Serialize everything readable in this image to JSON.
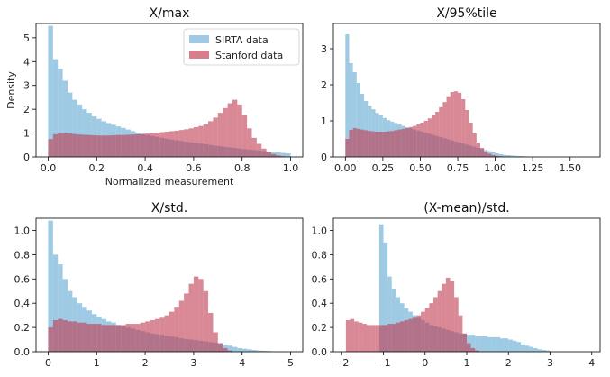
{
  "figure": {
    "legend": {
      "entries": [
        "SIRTA data",
        "Stanford data"
      ],
      "placement": "top-right of first panel"
    }
  },
  "colors": {
    "sirta": "#6BAED6",
    "stanford": "#C0394F"
  },
  "chart_data": [
    {
      "type": "histogram",
      "title": "X/max",
      "xlabel": "Normalized measurement",
      "ylabel": "Density",
      "xlim": [
        -0.05,
        1.05
      ],
      "ylim": [
        0,
        5.6
      ],
      "xticks": [
        0.0,
        0.2,
        0.4,
        0.6,
        0.8,
        1.0
      ],
      "xtick_labels": [
        "0.0",
        "0.2",
        "0.4",
        "0.6",
        "0.8",
        "1.0"
      ],
      "yticks": [
        0,
        1,
        2,
        3,
        4,
        5
      ],
      "ytick_labels": [
        "0",
        "1",
        "2",
        "3",
        "4",
        "5"
      ],
      "bin_start": 0.0,
      "bin_width": 0.02,
      "series": [
        {
          "name": "SIRTA data",
          "color": "#6BAED6",
          "values": [
            5.5,
            4.1,
            3.7,
            3.2,
            2.7,
            2.4,
            2.2,
            2.0,
            1.85,
            1.7,
            1.6,
            1.5,
            1.42,
            1.35,
            1.28,
            1.22,
            1.15,
            1.08,
            1.02,
            0.97,
            0.92,
            0.88,
            0.84,
            0.8,
            0.76,
            0.73,
            0.7,
            0.67,
            0.64,
            0.61,
            0.58,
            0.56,
            0.53,
            0.5,
            0.47,
            0.45,
            0.42,
            0.4,
            0.38,
            0.35,
            0.33,
            0.31,
            0.29,
            0.27,
            0.25,
            0.23,
            0.21,
            0.19,
            0.17,
            0.15
          ]
        },
        {
          "name": "Stanford data",
          "color": "#C0394F",
          "values": [
            0.75,
            0.95,
            1.0,
            1.0,
            0.98,
            0.96,
            0.94,
            0.93,
            0.92,
            0.91,
            0.9,
            0.9,
            0.9,
            0.91,
            0.92,
            0.92,
            0.93,
            0.94,
            0.95,
            0.96,
            0.98,
            1.0,
            1.02,
            1.04,
            1.06,
            1.08,
            1.1,
            1.13,
            1.16,
            1.2,
            1.25,
            1.3,
            1.38,
            1.5,
            1.65,
            1.85,
            2.05,
            2.25,
            2.4,
            2.2,
            1.75,
            1.2,
            0.8,
            0.55,
            0.35,
            0.22,
            0.12,
            0.06,
            0.03,
            0.01
          ]
        }
      ]
    },
    {
      "type": "histogram",
      "title": "X/95%tile",
      "xlim": [
        -0.08,
        1.7
      ],
      "ylim": [
        0,
        3.7
      ],
      "xticks": [
        0.0,
        0.25,
        0.5,
        0.75,
        1.0,
        1.25,
        1.5
      ],
      "xtick_labels": [
        "0.00",
        "0.25",
        "0.50",
        "0.75",
        "1.00",
        "1.25",
        "1.50"
      ],
      "yticks": [
        0,
        1,
        2,
        3
      ],
      "ytick_labels": [
        "0",
        "1",
        "2",
        "3"
      ],
      "bin_start": 0.0,
      "bin_width": 0.025,
      "series": [
        {
          "name": "SIRTA data",
          "color": "#6BAED6",
          "values": [
            3.4,
            2.6,
            2.35,
            2.05,
            1.75,
            1.55,
            1.42,
            1.32,
            1.22,
            1.15,
            1.08,
            1.02,
            0.98,
            0.94,
            0.9,
            0.86,
            0.82,
            0.79,
            0.76,
            0.73,
            0.7,
            0.67,
            0.64,
            0.61,
            0.58,
            0.55,
            0.52,
            0.49,
            0.46,
            0.43,
            0.4,
            0.37,
            0.34,
            0.31,
            0.28,
            0.25,
            0.22,
            0.19,
            0.16,
            0.13,
            0.1,
            0.08,
            0.06,
            0.05,
            0.04,
            0.03,
            0.025,
            0.02,
            0.015,
            0.012,
            0.01,
            0.008
          ]
        },
        {
          "name": "Stanford data",
          "color": "#C0394F",
          "values": [
            0.5,
            0.75,
            0.8,
            0.78,
            0.76,
            0.74,
            0.72,
            0.71,
            0.7,
            0.7,
            0.7,
            0.71,
            0.72,
            0.74,
            0.76,
            0.78,
            0.8,
            0.83,
            0.86,
            0.9,
            0.95,
            1.0,
            1.07,
            1.15,
            1.25,
            1.38,
            1.52,
            1.68,
            1.8,
            1.82,
            1.78,
            1.6,
            1.3,
            0.95,
            0.65,
            0.4,
            0.25,
            0.15,
            0.09,
            0.05,
            0.03,
            0.02,
            0.01
          ]
        }
      ]
    },
    {
      "type": "histogram",
      "title": "X/std.",
      "xlim": [
        -0.25,
        5.25
      ],
      "ylim": [
        0,
        1.1
      ],
      "xticks": [
        0,
        1,
        2,
        3,
        4,
        5
      ],
      "xtick_labels": [
        "0",
        "1",
        "2",
        "3",
        "4",
        "5"
      ],
      "yticks": [
        0.0,
        0.2,
        0.4,
        0.6,
        0.8,
        1.0
      ],
      "ytick_labels": [
        "0.0",
        "0.2",
        "0.4",
        "0.6",
        "0.8",
        "1.0"
      ],
      "bin_start": 0.0,
      "bin_width": 0.1,
      "series": [
        {
          "name": "SIRTA data",
          "color": "#6BAED6",
          "values": [
            1.08,
            0.8,
            0.72,
            0.6,
            0.5,
            0.45,
            0.4,
            0.37,
            0.34,
            0.31,
            0.29,
            0.27,
            0.25,
            0.24,
            0.22,
            0.21,
            0.2,
            0.19,
            0.18,
            0.17,
            0.16,
            0.15,
            0.145,
            0.14,
            0.13,
            0.125,
            0.12,
            0.11,
            0.105,
            0.1,
            0.095,
            0.09,
            0.085,
            0.08,
            0.075,
            0.07,
            0.06,
            0.05,
            0.04,
            0.03,
            0.025,
            0.02,
            0.015,
            0.01,
            0.008,
            0.006
          ]
        },
        {
          "name": "Stanford data",
          "color": "#C0394F",
          "values": [
            0.2,
            0.26,
            0.27,
            0.26,
            0.25,
            0.25,
            0.24,
            0.24,
            0.23,
            0.23,
            0.23,
            0.22,
            0.22,
            0.22,
            0.22,
            0.22,
            0.23,
            0.23,
            0.23,
            0.24,
            0.25,
            0.26,
            0.27,
            0.28,
            0.3,
            0.33,
            0.37,
            0.42,
            0.48,
            0.56,
            0.62,
            0.6,
            0.5,
            0.32,
            0.16,
            0.07,
            0.03,
            0.01
          ]
        }
      ]
    },
    {
      "type": "histogram",
      "title": "(X-mean)/std.",
      "xlim": [
        -2.2,
        4.2
      ],
      "ylim": [
        0,
        1.1
      ],
      "xticks": [
        -2,
        -1,
        0,
        1,
        2,
        3,
        4
      ],
      "xtick_labels": [
        "−2",
        "−1",
        "0",
        "1",
        "2",
        "3",
        "4"
      ],
      "yticks": [
        0.0,
        0.2,
        0.4,
        0.6,
        0.8,
        1.0
      ],
      "ytick_labels": [
        "0.0",
        "0.2",
        "0.4",
        "0.6",
        "0.8",
        "1.0"
      ],
      "series": [
        {
          "name": "SIRTA data",
          "color": "#6BAED6",
          "bin_start": -1.1,
          "bin_width": 0.1,
          "values": [
            1.05,
            0.9,
            0.62,
            0.52,
            0.45,
            0.4,
            0.36,
            0.33,
            0.3,
            0.28,
            0.26,
            0.24,
            0.22,
            0.21,
            0.2,
            0.19,
            0.18,
            0.17,
            0.16,
            0.15,
            0.15,
            0.14,
            0.14,
            0.13,
            0.13,
            0.13,
            0.12,
            0.12,
            0.12,
            0.11,
            0.11,
            0.1,
            0.09,
            0.08,
            0.06,
            0.05,
            0.04,
            0.03,
            0.02,
            0.015,
            0.01
          ]
        },
        {
          "name": "Stanford data",
          "color": "#C0394F",
          "bin_start": -1.9,
          "bin_width": 0.1,
          "values": [
            0.26,
            0.27,
            0.25,
            0.24,
            0.23,
            0.22,
            0.22,
            0.22,
            0.22,
            0.22,
            0.23,
            0.23,
            0.24,
            0.25,
            0.26,
            0.27,
            0.28,
            0.3,
            0.33,
            0.36,
            0.4,
            0.45,
            0.5,
            0.56,
            0.61,
            0.58,
            0.45,
            0.3,
            0.15,
            0.07,
            0.03,
            0.01
          ]
        }
      ]
    }
  ]
}
